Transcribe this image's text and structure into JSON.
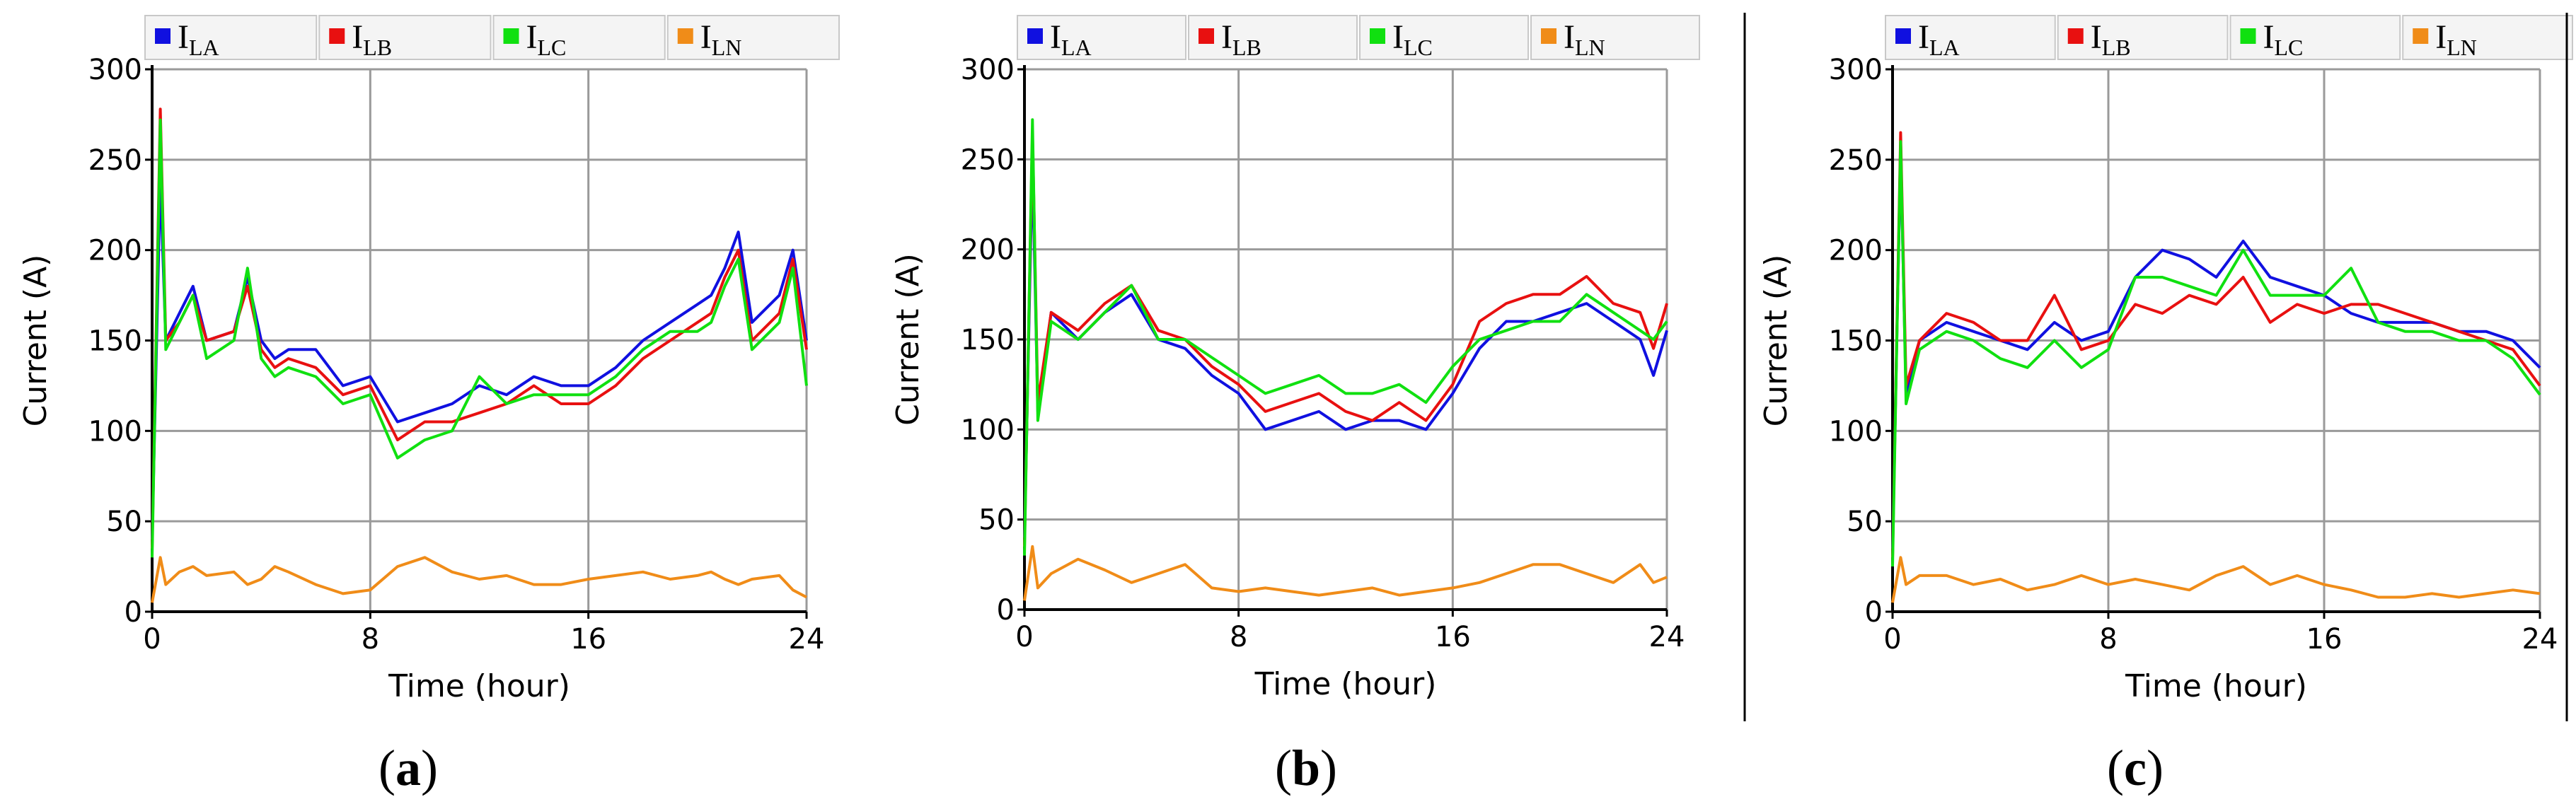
{
  "chart_data": [
    {
      "type": "line",
      "caption": "a",
      "xlabel": "Time (hour)",
      "ylabel": "Current (A)",
      "xlim": [
        0,
        24
      ],
      "ylim": [
        0,
        300
      ],
      "xticks": [
        0,
        8,
        16,
        24
      ],
      "yticks": [
        0,
        50,
        100,
        150,
        200,
        250,
        300
      ],
      "grid": true,
      "legend_position": "top",
      "x": [
        0,
        0.3,
        0.5,
        1,
        1.5,
        2,
        3,
        3.5,
        4,
        4.5,
        5,
        6,
        7,
        8,
        9,
        10,
        11,
        12,
        13,
        14,
        15,
        16,
        17,
        18,
        19,
        20,
        20.5,
        21,
        21.5,
        22,
        23,
        23.5,
        24
      ],
      "series": [
        {
          "name": "I",
          "sub": "LA",
          "color": "#1010e0",
          "values": [
            40,
            240,
            150,
            165,
            180,
            150,
            155,
            185,
            150,
            140,
            145,
            145,
            125,
            130,
            105,
            110,
            115,
            125,
            120,
            130,
            125,
            125,
            135,
            150,
            160,
            170,
            175,
            190,
            210,
            160,
            175,
            200,
            150
          ]
        },
        {
          "name": "I",
          "sub": "LB",
          "color": "#e81010",
          "values": [
            35,
            278,
            150,
            160,
            175,
            150,
            155,
            180,
            145,
            135,
            140,
            135,
            120,
            125,
            95,
            105,
            105,
            110,
            115,
            125,
            115,
            115,
            125,
            140,
            150,
            160,
            165,
            185,
            200,
            150,
            165,
            195,
            145
          ]
        },
        {
          "name": "I",
          "sub": "LC",
          "color": "#10e010",
          "values": [
            30,
            272,
            145,
            160,
            175,
            140,
            150,
            190,
            140,
            130,
            135,
            130,
            115,
            120,
            85,
            95,
            100,
            130,
            115,
            120,
            120,
            120,
            130,
            145,
            155,
            155,
            160,
            180,
            195,
            145,
            160,
            190,
            125
          ]
        },
        {
          "name": "I",
          "sub": "LN",
          "color": "#f08c18",
          "values": [
            5,
            30,
            15,
            22,
            25,
            20,
            22,
            15,
            18,
            25,
            22,
            15,
            10,
            12,
            25,
            30,
            22,
            18,
            20,
            15,
            15,
            18,
            20,
            22,
            18,
            20,
            22,
            18,
            15,
            18,
            20,
            12,
            8
          ]
        }
      ]
    },
    {
      "type": "line",
      "caption": "b",
      "xlabel": "Time (hour)",
      "ylabel": "Current (A)",
      "xlim": [
        0,
        24
      ],
      "ylim": [
        0,
        300
      ],
      "xticks": [
        0,
        8,
        16,
        24
      ],
      "yticks": [
        0,
        50,
        100,
        150,
        200,
        250,
        300
      ],
      "grid": true,
      "legend_position": "top",
      "x": [
        0,
        0.3,
        0.5,
        1,
        2,
        3,
        4,
        5,
        6,
        7,
        8,
        9,
        10,
        11,
        12,
        13,
        14,
        15,
        16,
        17,
        18,
        19,
        20,
        21,
        22,
        23,
        23.5,
        24
      ],
      "series": [
        {
          "name": "I",
          "sub": "LA",
          "color": "#1010e0",
          "values": [
            40,
            250,
            110,
            165,
            150,
            165,
            175,
            150,
            145,
            130,
            120,
            100,
            105,
            110,
            100,
            105,
            105,
            100,
            120,
            145,
            160,
            160,
            165,
            170,
            160,
            150,
            130,
            155
          ]
        },
        {
          "name": "I",
          "sub": "LB",
          "color": "#e81010",
          "values": [
            35,
            265,
            115,
            165,
            155,
            170,
            180,
            155,
            150,
            135,
            125,
            110,
            115,
            120,
            110,
            105,
            115,
            105,
            125,
            160,
            170,
            175,
            175,
            185,
            170,
            165,
            145,
            170
          ]
        },
        {
          "name": "I",
          "sub": "LC",
          "color": "#10e010",
          "values": [
            30,
            272,
            105,
            160,
            150,
            165,
            180,
            150,
            150,
            140,
            130,
            120,
            125,
            130,
            120,
            120,
            125,
            115,
            135,
            150,
            155,
            160,
            160,
            175,
            165,
            155,
            150,
            160
          ]
        },
        {
          "name": "I",
          "sub": "LN",
          "color": "#f08c18",
          "values": [
            5,
            35,
            12,
            20,
            28,
            22,
            15,
            20,
            25,
            12,
            10,
            12,
            10,
            8,
            10,
            12,
            8,
            10,
            12,
            15,
            20,
            25,
            25,
            20,
            15,
            25,
            15,
            18
          ]
        }
      ]
    },
    {
      "type": "line",
      "caption": "c",
      "xlabel": "Time (hour)",
      "ylabel": "Current (A)",
      "xlim": [
        0,
        24
      ],
      "ylim": [
        0,
        300
      ],
      "xticks": [
        0,
        8,
        16,
        24
      ],
      "yticks": [
        0,
        50,
        100,
        150,
        200,
        250,
        300
      ],
      "grid": true,
      "legend_position": "top",
      "x": [
        0,
        0.3,
        0.5,
        1,
        2,
        3,
        4,
        5,
        6,
        7,
        8,
        9,
        10,
        11,
        12,
        13,
        14,
        15,
        16,
        17,
        18,
        19,
        20,
        21,
        22,
        23,
        24
      ],
      "series": [
        {
          "name": "I",
          "sub": "LA",
          "color": "#1010e0",
          "values": [
            35,
            255,
            120,
            150,
            160,
            155,
            150,
            145,
            160,
            150,
            155,
            185,
            200,
            195,
            185,
            205,
            185,
            180,
            175,
            165,
            160,
            160,
            160,
            155,
            155,
            150,
            135
          ]
        },
        {
          "name": "I",
          "sub": "LB",
          "color": "#e81010",
          "values": [
            30,
            265,
            125,
            150,
            165,
            160,
            150,
            150,
            175,
            145,
            150,
            170,
            165,
            175,
            170,
            185,
            160,
            170,
            165,
            170,
            170,
            165,
            160,
            155,
            150,
            145,
            125
          ]
        },
        {
          "name": "I",
          "sub": "LC",
          "color": "#10e010",
          "values": [
            25,
            260,
            115,
            145,
            155,
            150,
            140,
            135,
            150,
            135,
            145,
            185,
            185,
            180,
            175,
            200,
            175,
            175,
            175,
            190,
            160,
            155,
            155,
            150,
            150,
            140,
            120
          ]
        },
        {
          "name": "I",
          "sub": "LN",
          "color": "#f08c18",
          "values": [
            5,
            30,
            15,
            20,
            20,
            15,
            18,
            12,
            15,
            20,
            15,
            18,
            15,
            12,
            20,
            25,
            15,
            20,
            15,
            12,
            8,
            8,
            10,
            8,
            10,
            12,
            10
          ]
        }
      ]
    }
  ]
}
